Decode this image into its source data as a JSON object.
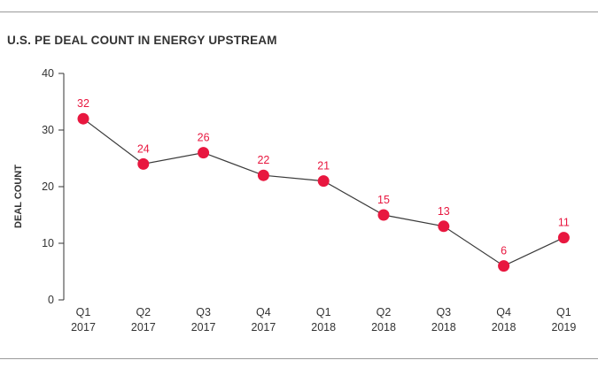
{
  "chart_data": {
    "type": "line",
    "title": "U.S. PE DEAL COUNT IN ENERGY UPSTREAM",
    "ylabel": "DEAL COUNT",
    "xlabel": "",
    "ylim": [
      0,
      40
    ],
    "yticks": [
      "0",
      "10",
      "20",
      "30",
      "40"
    ],
    "categories": [
      {
        "quarter": "Q1",
        "year": "2017"
      },
      {
        "quarter": "Q2",
        "year": "2017"
      },
      {
        "quarter": "Q3",
        "year": "2017"
      },
      {
        "quarter": "Q4",
        "year": "2017"
      },
      {
        "quarter": "Q1",
        "year": "2018"
      },
      {
        "quarter": "Q2",
        "year": "2018"
      },
      {
        "quarter": "Q3",
        "year": "2018"
      },
      {
        "quarter": "Q4",
        "year": "2018"
      },
      {
        "quarter": "Q1",
        "year": "2019"
      }
    ],
    "series": [
      {
        "name": "Deal count",
        "values": [
          32,
          24,
          26,
          22,
          21,
          15,
          13,
          6,
          11
        ]
      }
    ],
    "colors": {
      "marker": "#e8173f",
      "line": "#3a3a3a",
      "label": "#e8173f",
      "axis": "#333333"
    },
    "grid": false
  }
}
